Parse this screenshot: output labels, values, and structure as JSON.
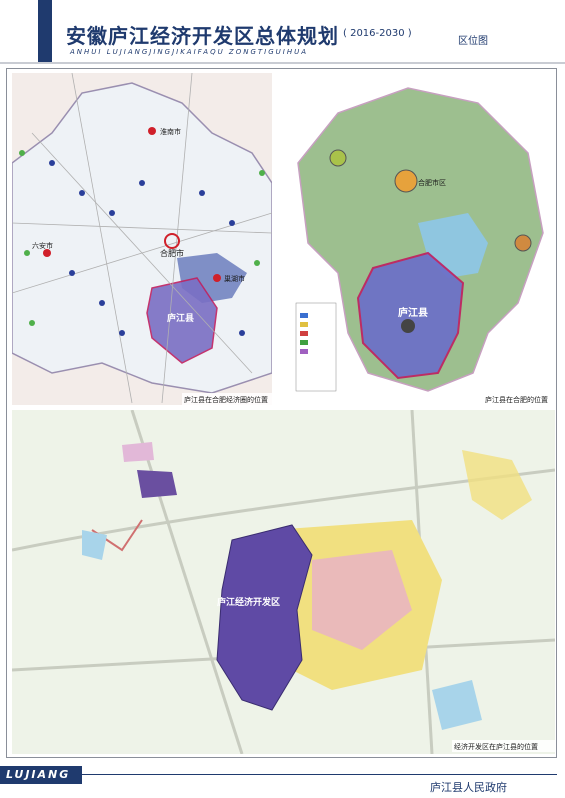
{
  "header": {
    "title": "安徽庐江经济开发区总体规划",
    "years": "( 2016-2030 )",
    "subtitle": "ANHUI LUJIANGJINGJIKAIFAQU ZONGTIGUIHUA",
    "section": "区位图"
  },
  "maps": [
    {
      "caption": "庐江县在合肥经济圈的位置",
      "labels": [
        "合肥市",
        "六安市",
        "淮南市",
        "巢湖市",
        "庐江县"
      ]
    },
    {
      "caption": "庐江县在合肥的位置",
      "labels": [
        "合肥市区",
        "庐江县"
      ]
    },
    {
      "caption": "经济开发区在庐江县的位置",
      "labels": [
        "庐江经济开发区"
      ]
    }
  ],
  "footer": {
    "logo": "LUJIANG",
    "org": "庐江县人民政府"
  }
}
